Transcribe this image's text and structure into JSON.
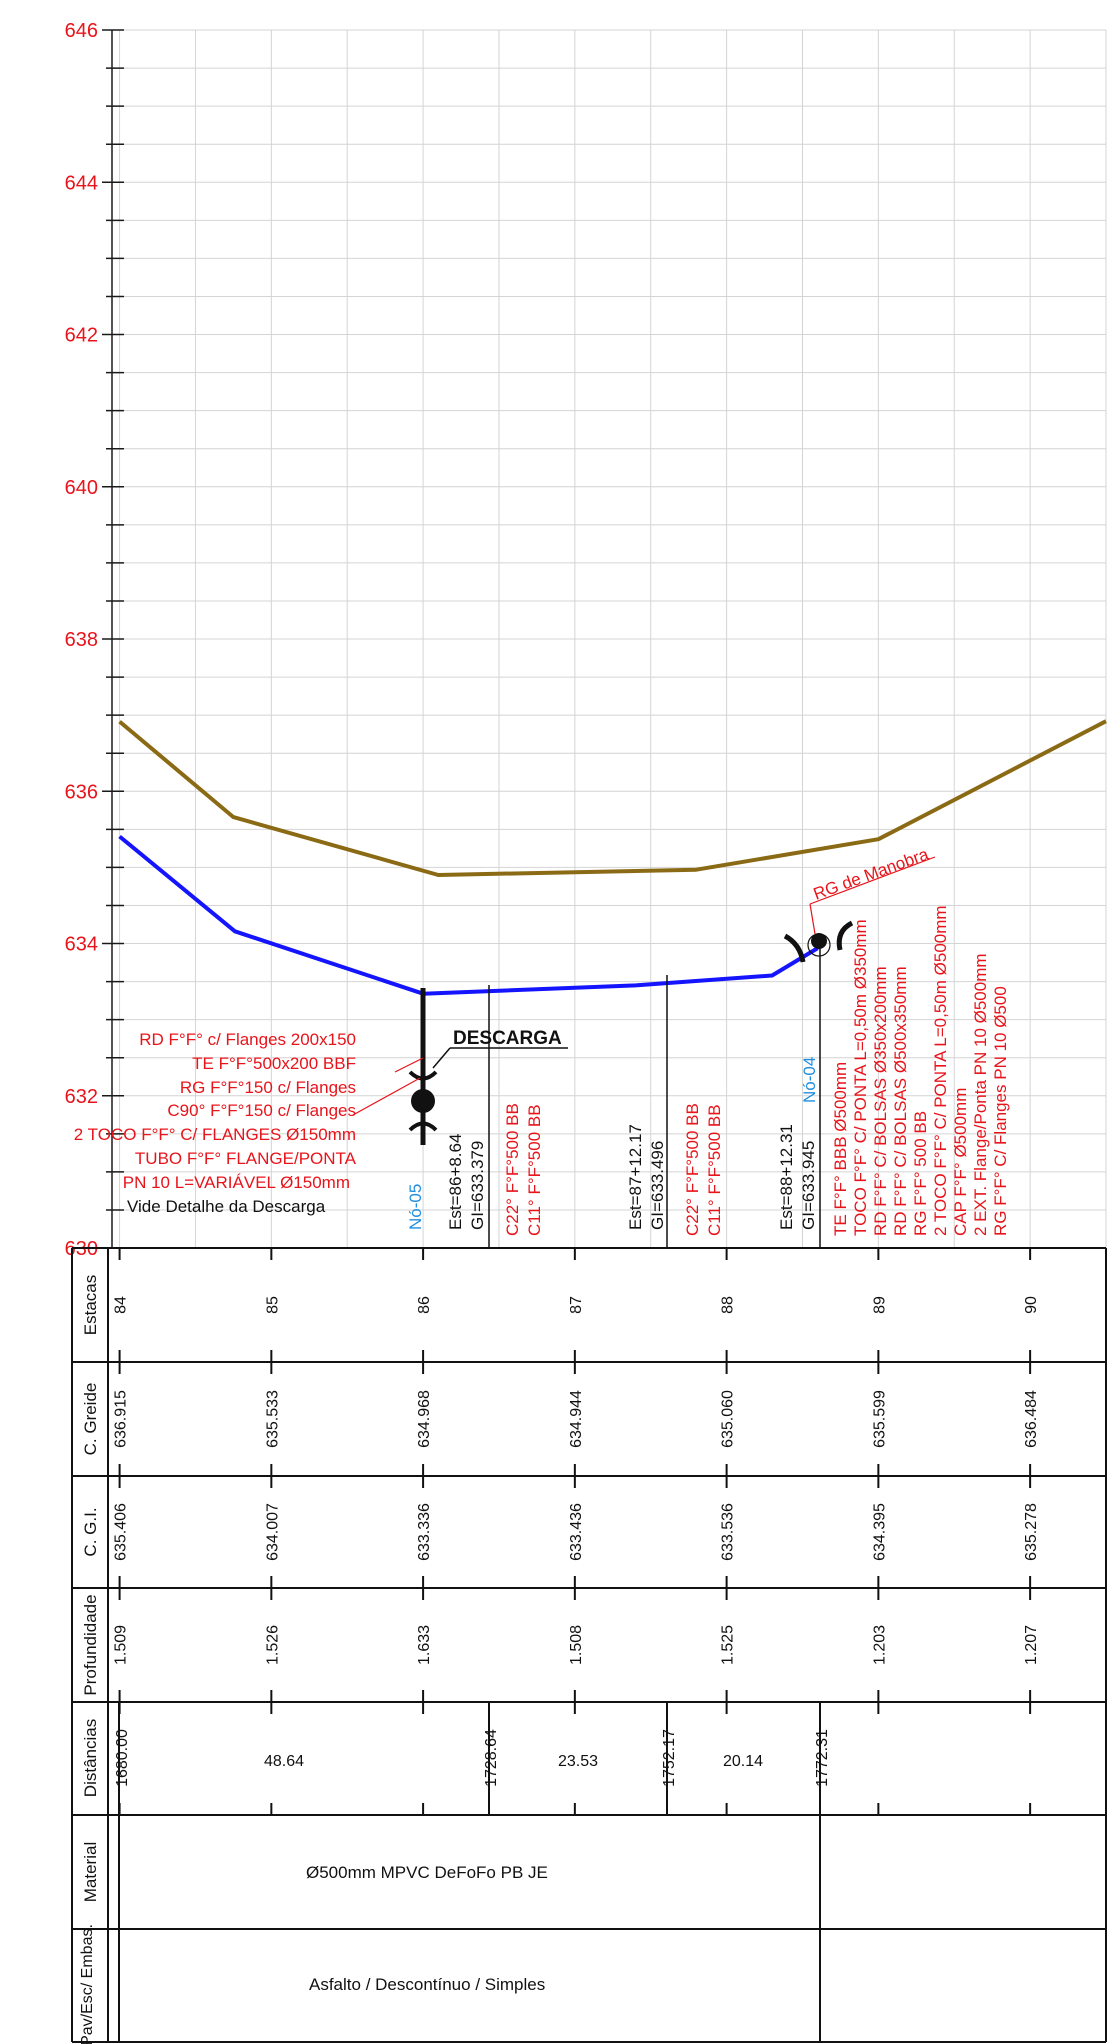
{
  "colors": {
    "grid": "#d4d4d4",
    "axis": "#1a1a1a",
    "terrain": "#8a6a14",
    "pipe": "#1414ff",
    "red_text": "#e8141b",
    "node_label": "#1f8ee0"
  },
  "chart_data": {
    "type": "line",
    "ylim": [
      630,
      646
    ],
    "xlim": [
      83.95,
      90.5
    ],
    "y_ticks": [
      "646",
      "644",
      "642",
      "640",
      "638",
      "636",
      "634",
      "632",
      "630"
    ],
    "series": [
      {
        "key": "terrain",
        "x": [
          84,
          84.75,
          86.1,
          87.8,
          89.0,
          90.5
        ],
        "y": [
          636.915,
          635.66,
          634.9,
          634.97,
          635.37,
          636.92
        ]
      },
      {
        "key": "pipe",
        "x": [
          84,
          84.76,
          86.0,
          87.4,
          88.3,
          88.6
        ],
        "y": [
          635.406,
          634.16,
          633.34,
          633.45,
          633.58,
          633.94
        ]
      }
    ],
    "stations": [
      "84",
      "85",
      "86",
      "87",
      "88",
      "89",
      "90"
    ]
  },
  "profile_annotations": {
    "descarga_title": "DESCARGA",
    "descarga_items": [
      "RD F°F° c/ Flanges 200x150",
      "TE F°F°500x200 BBF",
      "RG F°F°150 c/ Flanges",
      "C90° F°F°150 c/ Flanges",
      "2 TOCO F°F° C/ FLANGES Ø150mm",
      "TUBO F°F° FLANGE/PONTA",
      "PN 10 L=VARIÁVEL Ø150mm"
    ],
    "descarga_note": "Vide Detalhe da Descarga",
    "node_05": "Nó-05",
    "node_04": "Nó-04",
    "est_1": "Est=86+8.64",
    "gi_1": "GI=633.379",
    "fit_1a": "C22° F°F°500 BB",
    "fit_1b": "C11° F°F°500 BB",
    "est_2": "Est=87+12.17",
    "gi_2": "GI=633.496",
    "fit_2a": "C22° F°F°500 BB",
    "fit_2b": "C11° F°F°500 BB",
    "est_3": "Est=88+12.31",
    "gi_3": "GI=633.945",
    "node04_items": [
      "TE F°F° BBB Ø500mm",
      "TOCO F°F° C/ PONTA L=0,50m Ø350mm",
      "RD F°F° C/ BOLSAS Ø350x200mm",
      "RD F°F° C/ BOLSAS Ø500x350mm",
      "RG F°F° 500 BB",
      "2 TOCO F°F° C/ PONTA L=0,50m Ø500mm",
      "CAP F°F° Ø500mm",
      "2 EXT. Flange/Ponta PN 10 Ø500mm",
      "RG F°F° C/ Flanges PN 10 Ø500"
    ],
    "rg_manobra": "RG de Manobra"
  },
  "table": {
    "row_labels": [
      "Estacas",
      "C. Greide",
      "C. G.I.",
      "Profundidade",
      "Distâncias",
      "Material",
      "Pav/Esc/ Embas."
    ],
    "estacas": [
      "84",
      "85",
      "86",
      "87",
      "88",
      "89",
      "90"
    ],
    "c_greide": [
      "636.915",
      "635.533",
      "634.968",
      "634.944",
      "635.060",
      "635.599",
      "636.484"
    ],
    "c_gi": [
      "635.406",
      "634.007",
      "633.336",
      "633.436",
      "633.536",
      "634.395",
      "635.278"
    ],
    "profundidade": [
      "1.509",
      "1.526",
      "1.633",
      "1.508",
      "1.525",
      "1.203",
      "1.207"
    ],
    "dist_marks": [
      "1680.00",
      "1728.64",
      "1752.17",
      "1772.31"
    ],
    "dist_spans": [
      "48.64",
      "23.53",
      "20.14"
    ],
    "material": "Ø500mm MPVC DeFoFo PB JE",
    "pavimento": "Asfalto / Descontínuo / Simples"
  }
}
